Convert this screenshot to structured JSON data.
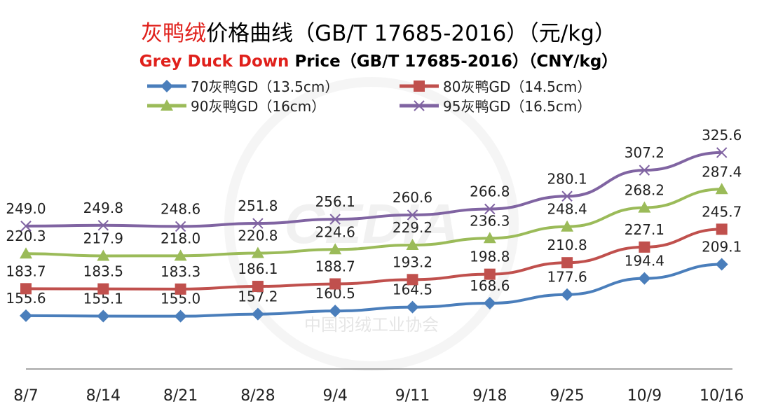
{
  "chart_data": {
    "type": "line",
    "title": {
      "red": "灰鸭绒",
      "black": "价格曲线（GB/T 17685-2016）（元/kg）"
    },
    "subtitle": {
      "red": "Grey Duck Down",
      "black": " Price（GB/T 17685-2016）（CNY/kg）"
    },
    "categories": [
      "8/7",
      "8/14",
      "8/21",
      "8/28",
      "9/4",
      "9/11",
      "9/18",
      "9/25",
      "10/9",
      "10/16"
    ],
    "ylim": [
      100,
      400
    ],
    "grid": false,
    "legend_position": "top",
    "series": [
      {
        "name": "70灰鸭GD（13.5cm）",
        "color": "#4a7ebb",
        "marker": "diamond",
        "values": [
          155.6,
          155.1,
          155.0,
          157.2,
          160.5,
          164.5,
          168.6,
          177.6,
          194.4,
          209.1
        ]
      },
      {
        "name": "80灰鸭GD（14.5cm）",
        "color": "#c0504d",
        "marker": "square",
        "values": [
          183.7,
          183.5,
          183.3,
          186.1,
          188.7,
          193.2,
          198.8,
          210.8,
          227.1,
          245.7
        ]
      },
      {
        "name": "90灰鸭GD（16cm）",
        "color": "#9bbb59",
        "marker": "triangle",
        "values": [
          220.3,
          217.9,
          218.0,
          220.8,
          224.6,
          229.2,
          236.3,
          248.4,
          268.2,
          287.4
        ]
      },
      {
        "name": "95灰鸭GD（16.5cm）",
        "color": "#8064a2",
        "marker": "x",
        "values": [
          249.0,
          249.8,
          248.6,
          251.8,
          256.1,
          260.6,
          266.8,
          280.1,
          307.2,
          325.6
        ]
      }
    ]
  },
  "watermark": {
    "logo": "CEDIA",
    "cn": "中国羽绒工业协会"
  }
}
